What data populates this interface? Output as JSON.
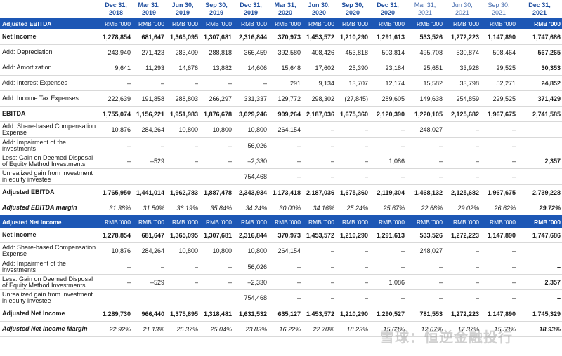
{
  "columns": [
    "Dec 31,\n2018",
    "Mar 31,\n2019",
    "Jun 30,\n2019",
    "Sep 30,\n2019",
    "Dec 31,\n2019",
    "Mar 31,\n2020",
    "Jun 30,\n2020",
    "Sep 30,\n2020",
    "Dec 31,\n2020",
    "Mar 31,\n2021",
    "Jun 30,\n2021",
    "Sep 30,\n2021",
    "Dec 31,\n2021"
  ],
  "unit": "RMB  '000",
  "section1": {
    "title": "Adjusted EBITDA",
    "rows": [
      {
        "label": "Net Income",
        "values": [
          "1,278,854",
          "681,647",
          "1,365,095",
          "1,307,681",
          "2,316,844",
          "370,973",
          "1,453,572",
          "1,210,290",
          "1,291,613",
          "533,526",
          "1,272,223",
          "1,147,890",
          "1,747,686"
        ]
      },
      {
        "label": "Add: Depreciation",
        "values": [
          "243,940",
          "271,423",
          "283,409",
          "288,818",
          "366,459",
          "392,580",
          "408,426",
          "453,818",
          "503,814",
          "495,708",
          "530,874",
          "508,464",
          "567,265"
        ]
      },
      {
        "label": "Add: Amortization",
        "values": [
          "9,641",
          "11,293",
          "14,676",
          "13,882",
          "14,606",
          "15,648",
          "17,602",
          "25,390",
          "23,184",
          "25,651",
          "33,928",
          "29,525",
          "30,353"
        ]
      },
      {
        "label": "Add: Interest Expenses",
        "values": [
          "–",
          "–",
          "–",
          "–",
          "–",
          "291",
          "9,134",
          "13,707",
          "12,174",
          "15,582",
          "33,798",
          "52,271",
          "24,852"
        ]
      },
      {
        "label": "Add: Income Tax Expenses",
        "values": [
          "222,639",
          "191,858",
          "288,803",
          "266,297",
          "331,337",
          "129,772",
          "298,302",
          "(27,845)",
          "289,605",
          "149,638",
          "254,859",
          "229,525",
          "371,429"
        ]
      },
      {
        "label": "EBITDA",
        "values": [
          "1,755,074",
          "1,156,221",
          "1,951,983",
          "1,876,678",
          "3,029,246",
          "909,264",
          "2,187,036",
          "1,675,360",
          "2,120,390",
          "1,220,105",
          "2,125,682",
          "1,967,675",
          "2,741,585"
        ]
      },
      {
        "label": "Add: Share-based Compensation Expense",
        "values": [
          "10,876",
          "284,264",
          "10,800",
          "10,800",
          "10,800",
          "264,154",
          "–",
          "–",
          "–",
          "248,027",
          "–",
          "–",
          ""
        ]
      },
      {
        "label": "Add: Impairment of the investments",
        "values": [
          "–",
          "–",
          "–",
          "–",
          "56,026",
          "–",
          "–",
          "–",
          "–",
          "–",
          "–",
          "–",
          "–"
        ]
      },
      {
        "label": "Less: Gain on Deemed Disposal of Equity Method Investments",
        "values": [
          "–",
          "–529",
          "–",
          "–",
          "–2,330",
          "–",
          "–",
          "–",
          "1,086",
          "–",
          "–",
          "–",
          "2,357"
        ]
      },
      {
        "label": "Unrealized gain from investment in equity investee",
        "values": [
          "",
          "",
          "",
          "",
          "754,468",
          "–",
          "–",
          "–",
          "–",
          "–",
          "–",
          "–",
          "–"
        ]
      },
      {
        "label": "Adjusted EBITDA",
        "values": [
          "1,765,950",
          "1,441,014",
          "1,962,783",
          "1,887,478",
          "2,343,934",
          "1,173,418",
          "2,187,036",
          "1,675,360",
          "2,119,304",
          "1,468,132",
          "2,125,682",
          "1,967,675",
          "2,739,228"
        ]
      },
      {
        "label": "Adjusted EBITDA margin",
        "values": [
          "31.38%",
          "31.50%",
          "36.19%",
          "35.84%",
          "34.24%",
          "30.00%",
          "34.16%",
          "25.24%",
          "25.67%",
          "22.68%",
          "29.02%",
          "26.62%",
          "29.72%"
        ]
      }
    ]
  },
  "section2": {
    "title": "Adjusted Net Income",
    "rows": [
      {
        "label": "Net Income",
        "values": [
          "1,278,854",
          "681,647",
          "1,365,095",
          "1,307,681",
          "2,316,844",
          "370,973",
          "1,453,572",
          "1,210,290",
          "1,291,613",
          "533,526",
          "1,272,223",
          "1,147,890",
          "1,747,686"
        ]
      },
      {
        "label": "Add: Share-based Compensation Expense",
        "values": [
          "10,876",
          "284,264",
          "10,800",
          "10,800",
          "10,800",
          "264,154",
          "–",
          "–",
          "–",
          "248,027",
          "–",
          "–",
          ""
        ]
      },
      {
        "label": "Add: Impairment of the investments",
        "values": [
          "–",
          "–",
          "–",
          "–",
          "56,026",
          "–",
          "–",
          "–",
          "–",
          "–",
          "–",
          "–",
          "–"
        ]
      },
      {
        "label": "Less: Gain on Deemed Disposal of Equity Method Investments",
        "values": [
          "–",
          "–529",
          "–",
          "–",
          "–2,330",
          "–",
          "–",
          "–",
          "1,086",
          "–",
          "–",
          "–",
          "2,357"
        ]
      },
      {
        "label": "Unrealized gain from investment in equity investee",
        "values": [
          "",
          "",
          "",
          "",
          "754,468",
          "–",
          "–",
          "–",
          "–",
          "–",
          "–",
          "–",
          "–"
        ]
      },
      {
        "label": "Adjusted Net Income",
        "values": [
          "1,289,730",
          "966,440",
          "1,375,895",
          "1,318,481",
          "1,631,532",
          "635,127",
          "1,453,572",
          "1,210,290",
          "1,290,527",
          "781,553",
          "1,272,223",
          "1,147,890",
          "1,745,329"
        ]
      },
      {
        "label": "Adjusted Net  Income Margin",
        "values": [
          "22.92%",
          "21.13%",
          "25.37%",
          "25.04%",
          "23.83%",
          "16.22%",
          "22.70%",
          "18.23%",
          "15.63%",
          "12.07%",
          "17.37%",
          "15.53%",
          "18.93%"
        ]
      }
    ]
  },
  "watermark": "雪球：恒逆金融投行"
}
